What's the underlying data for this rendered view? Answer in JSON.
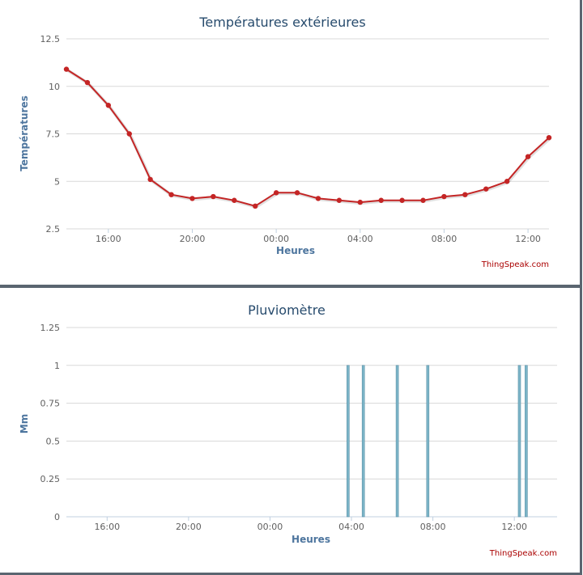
{
  "chart_data": [
    {
      "type": "line",
      "title": "Températures extérieures",
      "xlabel": "Heures",
      "ylabel": "Températures",
      "credit": "ThingSpeak.com",
      "x_ticks": [
        "16:00",
        "20:00",
        "00:00",
        "04:00",
        "08:00",
        "12:00"
      ],
      "y_ticks": [
        "2.5",
        "5",
        "7.5",
        "10",
        "12.5"
      ],
      "ylim": [
        2.5,
        12.5
      ],
      "xlim_hours": [
        14,
        37
      ],
      "color": "#c42525",
      "grid": true,
      "series": [
        {
          "x": [
            "14:00",
            "15:00",
            "16:00",
            "17:00",
            "18:00",
            "19:00",
            "20:00",
            "21:00",
            "22:00",
            "23:00",
            "00:00",
            "01:00",
            "02:00",
            "03:00",
            "04:00",
            "05:00",
            "06:00",
            "07:00",
            "08:00",
            "09:00",
            "10:00",
            "11:00",
            "12:00",
            "13:00"
          ],
          "values": [
            10.9,
            10.2,
            9.0,
            7.5,
            5.1,
            4.3,
            4.1,
            4.2,
            4.0,
            3.7,
            4.4,
            4.4,
            4.1,
            4.0,
            3.9,
            4.0,
            4.0,
            4.0,
            4.2,
            4.3,
            4.6,
            5.0,
            6.3,
            7.3
          ]
        }
      ]
    },
    {
      "type": "bar",
      "title": "Pluviomètre",
      "xlabel": "Heures",
      "ylabel": "Mm",
      "credit": "ThingSpeak.com",
      "x_ticks": [
        "16:00",
        "20:00",
        "00:00",
        "04:00",
        "08:00",
        "12:00"
      ],
      "y_ticks": [
        "0",
        "0.25",
        "0.5",
        "0.75",
        "1",
        "1.25"
      ],
      "ylim": [
        0,
        1.25
      ],
      "xlim_hours": [
        14,
        38.1
      ],
      "color": "#7cb5c8",
      "grid": true,
      "series": [
        {
          "x": [
            "03:50",
            "04:35",
            "06:15",
            "07:45",
            "12:15",
            "12:35"
          ],
          "values": [
            1,
            1,
            1,
            1,
            1,
            1
          ]
        }
      ]
    }
  ]
}
